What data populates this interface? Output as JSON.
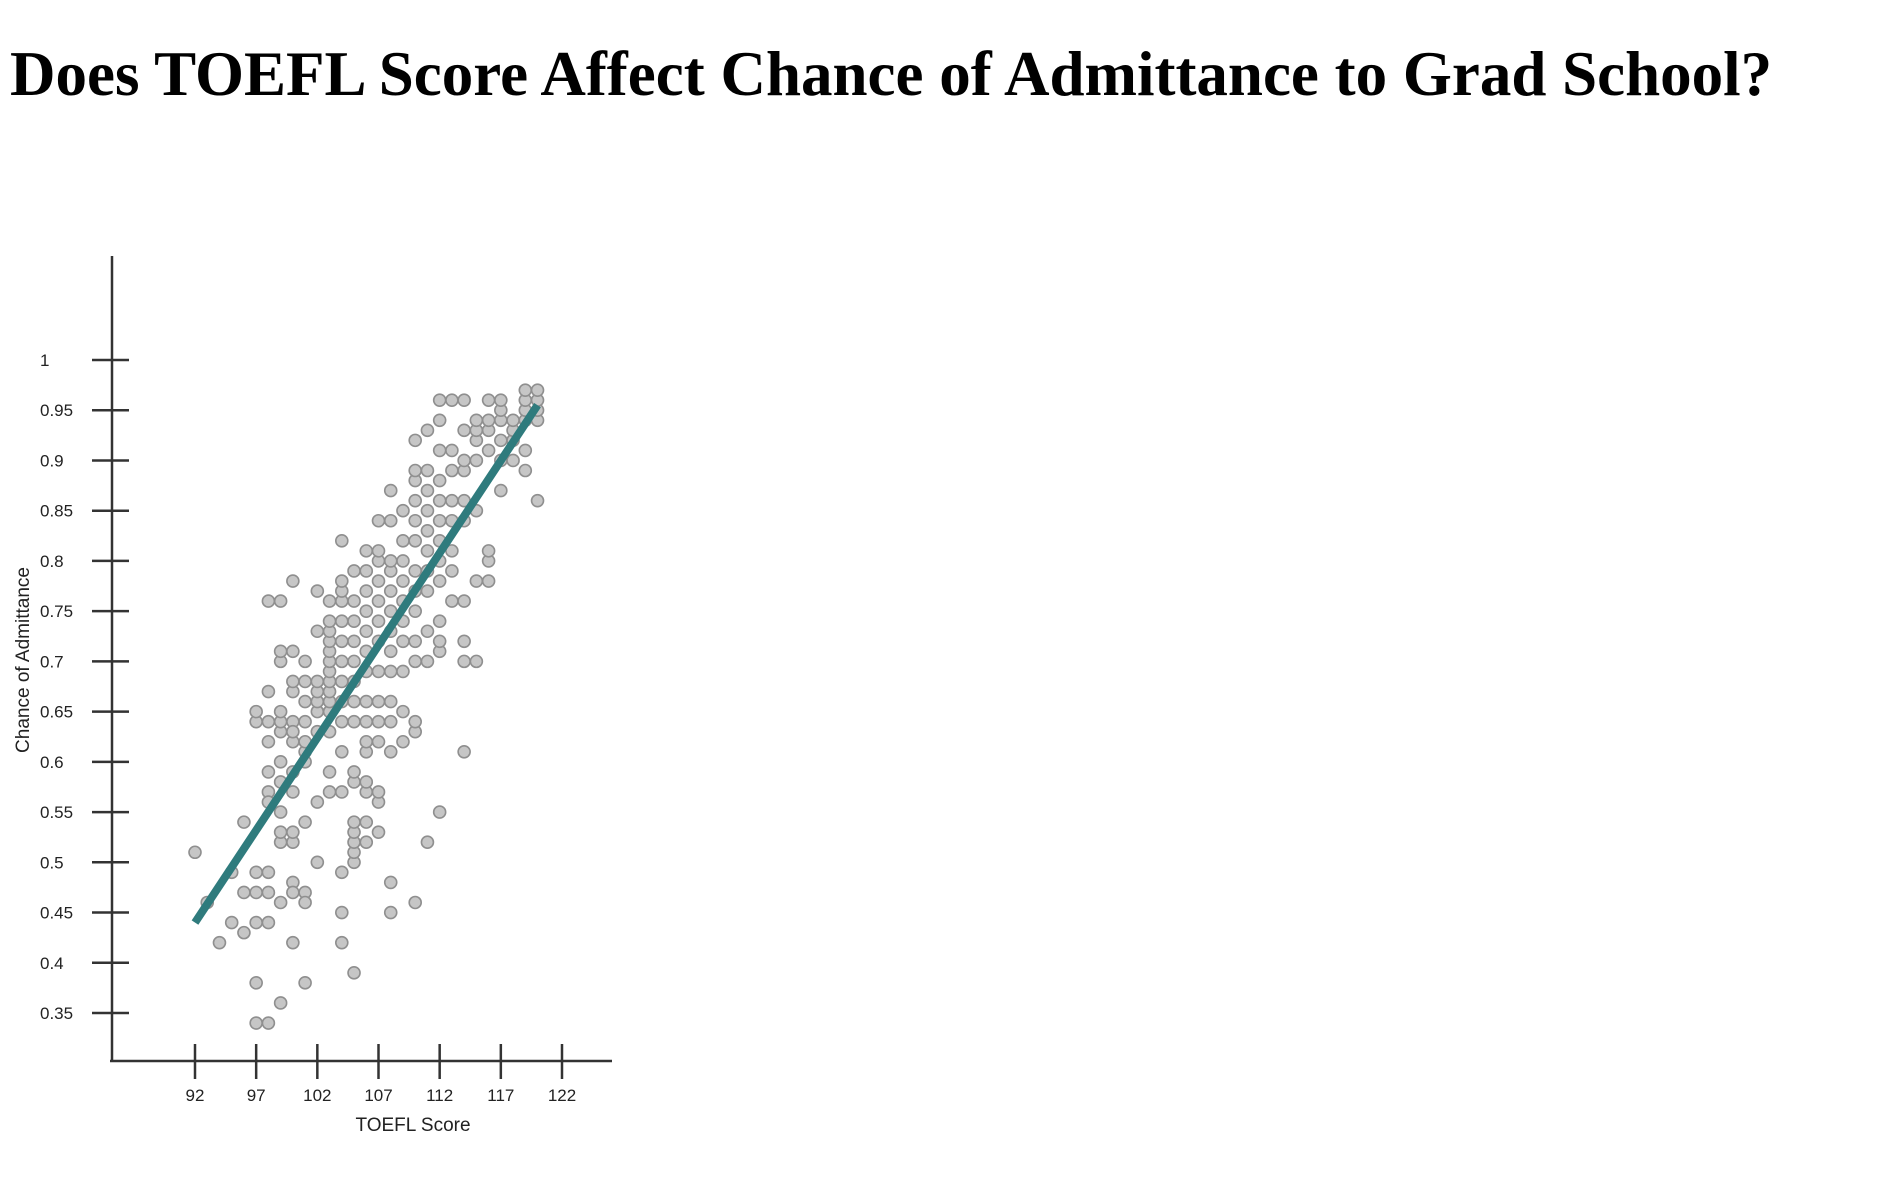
{
  "title": "Does TOEFL Score Affect Chance of Admittance to Grad School?",
  "chart_data": {
    "type": "scatter",
    "title": "",
    "xlabel": "TOEFL Score",
    "ylabel": "Chance of Admittance",
    "xlim": [
      92,
      122
    ],
    "ylim": [
      0.34,
      1.0
    ],
    "x_ticks": [
      92,
      97,
      102,
      107,
      112,
      117,
      122
    ],
    "y_ticks": [
      1,
      0.95,
      0.9,
      0.85,
      0.8,
      0.75,
      0.7,
      0.65,
      0.6,
      0.55,
      0.5,
      0.45,
      0.4,
      0.35
    ],
    "y_tick_labels": [
      "1",
      "0.95",
      "0.9",
      "0.85",
      "0.8",
      "0.75",
      "0.7",
      "0.65",
      "0.6",
      "0.55",
      "0.5",
      "0.45",
      "0.4",
      "0.35"
    ],
    "grid": false,
    "point_color": "#c6c6c6",
    "point_stroke": "#8f8f8f",
    "trendline": {
      "color": "#2f7b7d",
      "x": [
        92,
        120
      ],
      "y": [
        0.44,
        0.955
      ]
    },
    "points": [
      [
        92,
        0.51
      ],
      [
        93,
        0.46
      ],
      [
        94,
        0.42
      ],
      [
        95,
        0.49
      ],
      [
        95,
        0.44
      ],
      [
        96,
        0.54
      ],
      [
        96,
        0.47
      ],
      [
        96,
        0.43
      ],
      [
        97,
        0.49
      ],
      [
        97,
        0.47
      ],
      [
        97,
        0.44
      ],
      [
        97,
        0.38
      ],
      [
        97,
        0.34
      ],
      [
        97,
        0.64
      ],
      [
        97,
        0.65
      ],
      [
        98,
        0.49
      ],
      [
        98,
        0.47
      ],
      [
        98,
        0.44
      ],
      [
        98,
        0.34
      ],
      [
        98,
        0.59
      ],
      [
        98,
        0.57
      ],
      [
        98,
        0.56
      ],
      [
        98,
        0.62
      ],
      [
        98,
        0.64
      ],
      [
        98,
        0.67
      ],
      [
        98,
        0.76
      ],
      [
        99,
        0.46
      ],
      [
        99,
        0.36
      ],
      [
        99,
        0.52
      ],
      [
        99,
        0.53
      ],
      [
        99,
        0.55
      ],
      [
        99,
        0.58
      ],
      [
        99,
        0.6
      ],
      [
        99,
        0.63
      ],
      [
        99,
        0.64
      ],
      [
        99,
        0.65
      ],
      [
        99,
        0.7
      ],
      [
        99,
        0.71
      ],
      [
        99,
        0.76
      ],
      [
        100,
        0.48
      ],
      [
        100,
        0.47
      ],
      [
        100,
        0.42
      ],
      [
        100,
        0.52
      ],
      [
        100,
        0.53
      ],
      [
        100,
        0.57
      ],
      [
        100,
        0.59
      ],
      [
        100,
        0.62
      ],
      [
        100,
        0.64
      ],
      [
        100,
        0.67
      ],
      [
        100,
        0.68
      ],
      [
        100,
        0.71
      ],
      [
        100,
        0.78
      ],
      [
        100,
        0.63
      ],
      [
        101,
        0.47
      ],
      [
        101,
        0.46
      ],
      [
        101,
        0.38
      ],
      [
        101,
        0.54
      ],
      [
        101,
        0.6
      ],
      [
        101,
        0.61
      ],
      [
        101,
        0.62
      ],
      [
        101,
        0.64
      ],
      [
        101,
        0.66
      ],
      [
        101,
        0.68
      ],
      [
        101,
        0.7
      ],
      [
        102,
        0.5
      ],
      [
        102,
        0.56
      ],
      [
        102,
        0.63
      ],
      [
        102,
        0.65
      ],
      [
        102,
        0.66
      ],
      [
        102,
        0.67
      ],
      [
        102,
        0.68
      ],
      [
        102,
        0.73
      ],
      [
        102,
        0.77
      ],
      [
        103,
        0.57
      ],
      [
        103,
        0.59
      ],
      [
        103,
        0.63
      ],
      [
        103,
        0.65
      ],
      [
        103,
        0.66
      ],
      [
        103,
        0.67
      ],
      [
        103,
        0.68
      ],
      [
        103,
        0.69
      ],
      [
        103,
        0.7
      ],
      [
        103,
        0.71
      ],
      [
        103,
        0.72
      ],
      [
        103,
        0.73
      ],
      [
        103,
        0.74
      ],
      [
        103,
        0.76
      ],
      [
        104,
        0.45
      ],
      [
        104,
        0.42
      ],
      [
        104,
        0.49
      ],
      [
        104,
        0.57
      ],
      [
        104,
        0.61
      ],
      [
        104,
        0.64
      ],
      [
        104,
        0.66
      ],
      [
        104,
        0.68
      ],
      [
        104,
        0.7
      ],
      [
        104,
        0.72
      ],
      [
        104,
        0.74
      ],
      [
        104,
        0.76
      ],
      [
        104,
        0.77
      ],
      [
        104,
        0.78
      ],
      [
        104,
        0.82
      ],
      [
        105,
        0.39
      ],
      [
        105,
        0.5
      ],
      [
        105,
        0.51
      ],
      [
        105,
        0.52
      ],
      [
        105,
        0.53
      ],
      [
        105,
        0.54
      ],
      [
        105,
        0.58
      ],
      [
        105,
        0.59
      ],
      [
        105,
        0.64
      ],
      [
        105,
        0.66
      ],
      [
        105,
        0.68
      ],
      [
        105,
        0.7
      ],
      [
        105,
        0.72
      ],
      [
        105,
        0.74
      ],
      [
        105,
        0.76
      ],
      [
        105,
        0.79
      ],
      [
        106,
        0.52
      ],
      [
        106,
        0.54
      ],
      [
        106,
        0.57
      ],
      [
        106,
        0.58
      ],
      [
        106,
        0.61
      ],
      [
        106,
        0.62
      ],
      [
        106,
        0.64
      ],
      [
        106,
        0.66
      ],
      [
        106,
        0.69
      ],
      [
        106,
        0.71
      ],
      [
        106,
        0.73
      ],
      [
        106,
        0.75
      ],
      [
        106,
        0.77
      ],
      [
        106,
        0.79
      ],
      [
        106,
        0.81
      ],
      [
        107,
        0.53
      ],
      [
        107,
        0.56
      ],
      [
        107,
        0.57
      ],
      [
        107,
        0.62
      ],
      [
        107,
        0.64
      ],
      [
        107,
        0.66
      ],
      [
        107,
        0.69
      ],
      [
        107,
        0.72
      ],
      [
        107,
        0.74
      ],
      [
        107,
        0.76
      ],
      [
        107,
        0.78
      ],
      [
        107,
        0.8
      ],
      [
        107,
        0.81
      ],
      [
        107,
        0.84
      ],
      [
        108,
        0.45
      ],
      [
        108,
        0.48
      ],
      [
        108,
        0.61
      ],
      [
        108,
        0.64
      ],
      [
        108,
        0.66
      ],
      [
        108,
        0.69
      ],
      [
        108,
        0.71
      ],
      [
        108,
        0.73
      ],
      [
        108,
        0.75
      ],
      [
        108,
        0.77
      ],
      [
        108,
        0.79
      ],
      [
        108,
        0.8
      ],
      [
        108,
        0.84
      ],
      [
        108,
        0.87
      ],
      [
        109,
        0.62
      ],
      [
        109,
        0.65
      ],
      [
        109,
        0.69
      ],
      [
        109,
        0.72
      ],
      [
        109,
        0.74
      ],
      [
        109,
        0.76
      ],
      [
        109,
        0.78
      ],
      [
        109,
        0.8
      ],
      [
        109,
        0.82
      ],
      [
        109,
        0.85
      ],
      [
        110,
        0.46
      ],
      [
        110,
        0.63
      ],
      [
        110,
        0.64
      ],
      [
        110,
        0.7
      ],
      [
        110,
        0.72
      ],
      [
        110,
        0.75
      ],
      [
        110,
        0.77
      ],
      [
        110,
        0.79
      ],
      [
        110,
        0.82
      ],
      [
        110,
        0.84
      ],
      [
        110,
        0.86
      ],
      [
        110,
        0.88
      ],
      [
        110,
        0.89
      ],
      [
        110,
        0.92
      ],
      [
        111,
        0.52
      ],
      [
        111,
        0.7
      ],
      [
        111,
        0.73
      ],
      [
        111,
        0.77
      ],
      [
        111,
        0.79
      ],
      [
        111,
        0.81
      ],
      [
        111,
        0.83
      ],
      [
        111,
        0.85
      ],
      [
        111,
        0.87
      ],
      [
        111,
        0.89
      ],
      [
        111,
        0.93
      ],
      [
        112,
        0.55
      ],
      [
        112,
        0.71
      ],
      [
        112,
        0.72
      ],
      [
        112,
        0.74
      ],
      [
        112,
        0.78
      ],
      [
        112,
        0.8
      ],
      [
        112,
        0.82
      ],
      [
        112,
        0.84
      ],
      [
        112,
        0.86
      ],
      [
        112,
        0.88
      ],
      [
        112,
        0.91
      ],
      [
        112,
        0.94
      ],
      [
        112,
        0.96
      ],
      [
        113,
        0.76
      ],
      [
        113,
        0.79
      ],
      [
        113,
        0.81
      ],
      [
        113,
        0.84
      ],
      [
        113,
        0.86
      ],
      [
        113,
        0.89
      ],
      [
        113,
        0.91
      ],
      [
        113,
        0.96
      ],
      [
        114,
        0.61
      ],
      [
        114,
        0.7
      ],
      [
        114,
        0.72
      ],
      [
        114,
        0.76
      ],
      [
        114,
        0.84
      ],
      [
        114,
        0.86
      ],
      [
        114,
        0.89
      ],
      [
        114,
        0.9
      ],
      [
        114,
        0.93
      ],
      [
        114,
        0.96
      ],
      [
        115,
        0.7
      ],
      [
        115,
        0.78
      ],
      [
        115,
        0.85
      ],
      [
        115,
        0.9
      ],
      [
        115,
        0.92
      ],
      [
        115,
        0.93
      ],
      [
        115,
        0.94
      ],
      [
        116,
        0.78
      ],
      [
        116,
        0.8
      ],
      [
        116,
        0.81
      ],
      [
        116,
        0.91
      ],
      [
        116,
        0.93
      ],
      [
        116,
        0.94
      ],
      [
        116,
        0.96
      ],
      [
        117,
        0.87
      ],
      [
        117,
        0.9
      ],
      [
        117,
        0.92
      ],
      [
        117,
        0.94
      ],
      [
        117,
        0.95
      ],
      [
        117,
        0.96
      ],
      [
        118,
        0.9
      ],
      [
        118,
        0.92
      ],
      [
        118,
        0.93
      ],
      [
        118,
        0.94
      ],
      [
        119,
        0.89
      ],
      [
        119,
        0.91
      ],
      [
        119,
        0.94
      ],
      [
        119,
        0.95
      ],
      [
        119,
        0.96
      ],
      [
        119,
        0.97
      ],
      [
        120,
        0.86
      ],
      [
        120,
        0.94
      ],
      [
        120,
        0.95
      ],
      [
        120,
        0.96
      ],
      [
        120,
        0.97
      ]
    ]
  }
}
